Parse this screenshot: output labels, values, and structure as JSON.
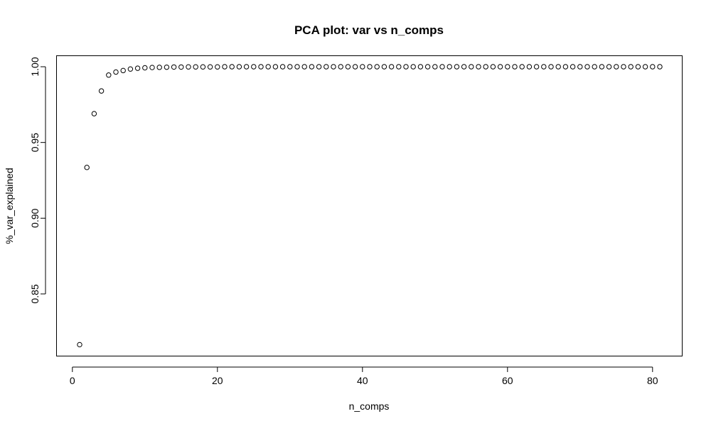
{
  "chart_data": {
    "type": "scatter",
    "title": "PCA plot: var vs n_comps",
    "xlabel": "n_comps",
    "ylabel": "%_var_explained",
    "xlim": [
      1,
      81
    ],
    "ylim": [
      0.816,
      1.0
    ],
    "x_ticks": [
      0,
      20,
      40,
      60,
      80
    ],
    "y_ticks": [
      0.85,
      0.9,
      0.95,
      1.0
    ],
    "y_tick_labels": [
      "0.85",
      "0.90",
      "0.95",
      "1.00"
    ],
    "grid": false,
    "marker": "open-circle",
    "series": [
      {
        "x": [
          1,
          2,
          3,
          4,
          5,
          6,
          7,
          8,
          9,
          10,
          11,
          12,
          13,
          14,
          15,
          16,
          17,
          18,
          19,
          20,
          21,
          22,
          23,
          24,
          25,
          26,
          27,
          28,
          29,
          30,
          31,
          32,
          33,
          34,
          35,
          36,
          37,
          38,
          39,
          40,
          41,
          42,
          43,
          44,
          45,
          46,
          47,
          48,
          49,
          50,
          51,
          52,
          53,
          54,
          55,
          56,
          57,
          58,
          59,
          60,
          61,
          62,
          63,
          64,
          65,
          66,
          67,
          68,
          69,
          70,
          71,
          72,
          73,
          74,
          75,
          76,
          77,
          78,
          79,
          80,
          81
        ],
        "values": [
          0.8165,
          0.9335,
          0.969,
          0.984,
          0.9945,
          0.9965,
          0.9975,
          0.9985,
          0.999,
          0.9993,
          0.9995,
          0.9996,
          0.9997,
          0.9998,
          0.9998,
          0.9999,
          0.9999,
          0.9999,
          0.9999,
          0.9999,
          1.0,
          1.0,
          1.0,
          1.0,
          1.0,
          1.0,
          1.0,
          1.0,
          1.0,
          1.0,
          1.0,
          1.0,
          1.0,
          1.0,
          1.0,
          1.0,
          1.0,
          1.0,
          1.0,
          1.0,
          1.0,
          1.0,
          1.0,
          1.0,
          1.0,
          1.0,
          1.0,
          1.0,
          1.0,
          1.0,
          1.0,
          1.0,
          1.0,
          1.0,
          1.0,
          1.0,
          1.0,
          1.0,
          1.0,
          1.0,
          1.0,
          1.0,
          1.0,
          1.0,
          1.0,
          1.0,
          1.0,
          1.0,
          1.0,
          1.0,
          1.0,
          1.0,
          1.0,
          1.0,
          1.0,
          1.0,
          1.0,
          1.0,
          1.0,
          1.0,
          1.0
        ]
      }
    ]
  }
}
